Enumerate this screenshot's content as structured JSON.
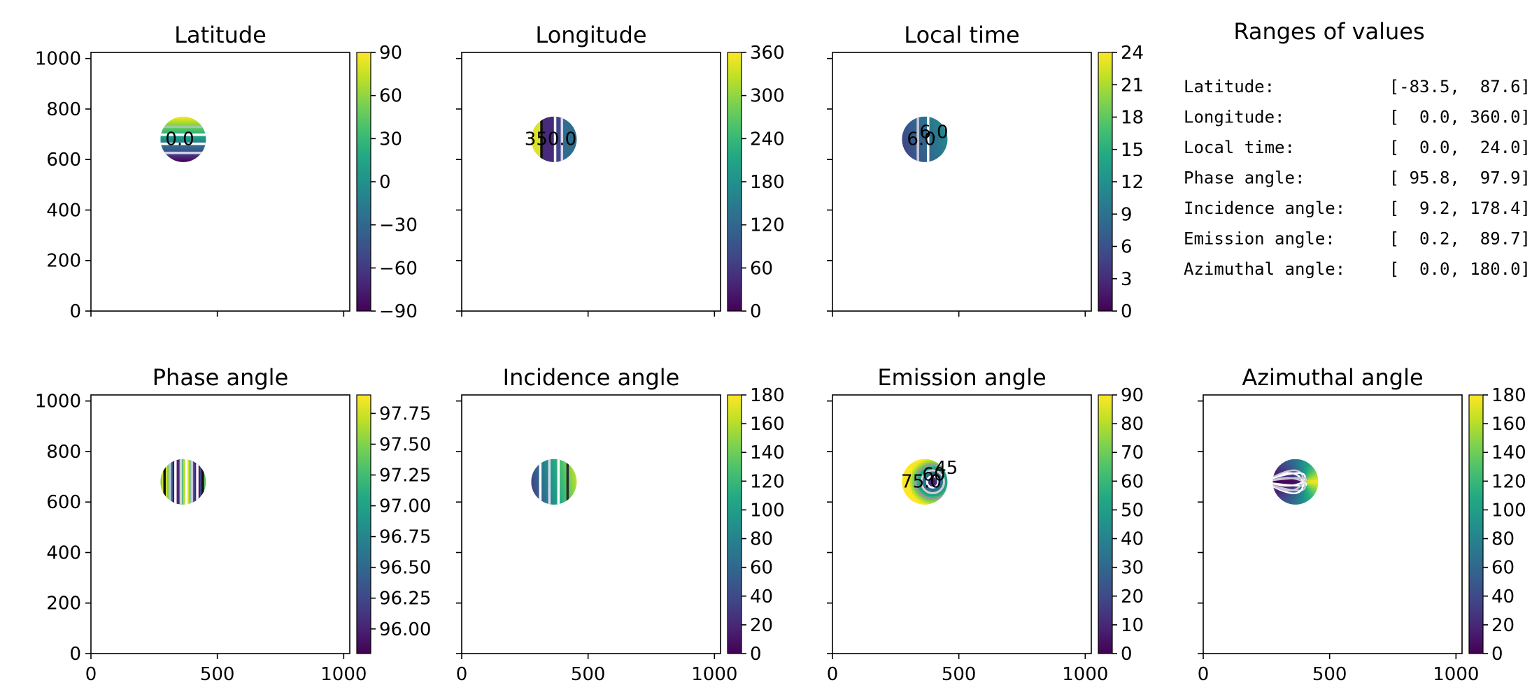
{
  "chart_data": {
    "type": "heatmap",
    "colormap": "viridis",
    "x_ticks": [
      "0",
      "500",
      "1000"
    ],
    "y_ticks": [
      "0",
      "200",
      "400",
      "600",
      "800",
      "1000"
    ],
    "xlim": [
      0,
      1024
    ],
    "ylim": [
      0,
      1024
    ],
    "disk": {
      "center": [
        365,
        680
      ],
      "radius": 90
    },
    "panels": [
      {
        "id": "latitude",
        "title": "Latitude",
        "kind": "lat",
        "cbar_ticks": [
          "90",
          "60",
          "30",
          "0",
          "−30",
          "−60",
          "−90"
        ],
        "cbar_range": [
          -90,
          90
        ],
        "contour_labels": [
          "0.0"
        ]
      },
      {
        "id": "longitude",
        "title": "Longitude",
        "kind": "lon",
        "cbar_ticks": [
          "360",
          "300",
          "240",
          "180",
          "120",
          "60",
          "0"
        ],
        "cbar_range": [
          0,
          360
        ],
        "contour_labels": [
          "350.0"
        ]
      },
      {
        "id": "local-time",
        "title": "Local time",
        "kind": "lt",
        "cbar_ticks": [
          "24",
          "21",
          "18",
          "15",
          "12",
          "9",
          "6",
          "3",
          "0"
        ],
        "cbar_range": [
          0,
          24
        ],
        "contour_labels": [
          "6.0",
          "6.0"
        ]
      },
      {
        "id": "phase-angle",
        "title": "Phase angle",
        "kind": "phase",
        "cbar_ticks": [
          "97.75",
          "97.50",
          "97.25",
          "97.00",
          "96.75",
          "96.50",
          "96.25",
          "96.00"
        ],
        "cbar_range": [
          95.8,
          97.9
        ],
        "contour_labels": []
      },
      {
        "id": "incidence-angle",
        "title": "Incidence angle",
        "kind": "inc",
        "cbar_ticks": [
          "180",
          "160",
          "140",
          "120",
          "100",
          "80",
          "60",
          "40",
          "20",
          "0"
        ],
        "cbar_range": [
          0,
          180
        ],
        "contour_labels": []
      },
      {
        "id": "emission-angle",
        "title": "Emission angle",
        "kind": "emi",
        "cbar_ticks": [
          "90",
          "80",
          "70",
          "60",
          "50",
          "40",
          "30",
          "20",
          "10",
          "0"
        ],
        "cbar_range": [
          0,
          90
        ],
        "contour_labels": [
          "75.0",
          "60",
          "45"
        ]
      },
      {
        "id": "azimuthal-angle",
        "title": "Azimuthal angle",
        "kind": "azi",
        "cbar_ticks": [
          "180",
          "160",
          "140",
          "120",
          "100",
          "80",
          "60",
          "40",
          "20",
          "0"
        ],
        "cbar_range": [
          0,
          180
        ],
        "contour_labels": []
      }
    ],
    "ranges": {
      "title": "Ranges of values",
      "rows": [
        {
          "label": "Latitude:",
          "value": "[-83.5,  87.6]"
        },
        {
          "label": "Longitude:",
          "value": "[  0.0, 360.0]"
        },
        {
          "label": "Local time:",
          "value": "[  0.0,  24.0]"
        },
        {
          "label": "Phase angle:",
          "value": "[ 95.8,  97.9]"
        },
        {
          "label": "Incidence angle:",
          "value": "[  9.2, 178.4]"
        },
        {
          "label": "Emission angle:",
          "value": "[  0.2,  89.7]"
        },
        {
          "label": "Azimuthal angle:",
          "value": "[  0.0, 180.0]"
        }
      ]
    }
  }
}
